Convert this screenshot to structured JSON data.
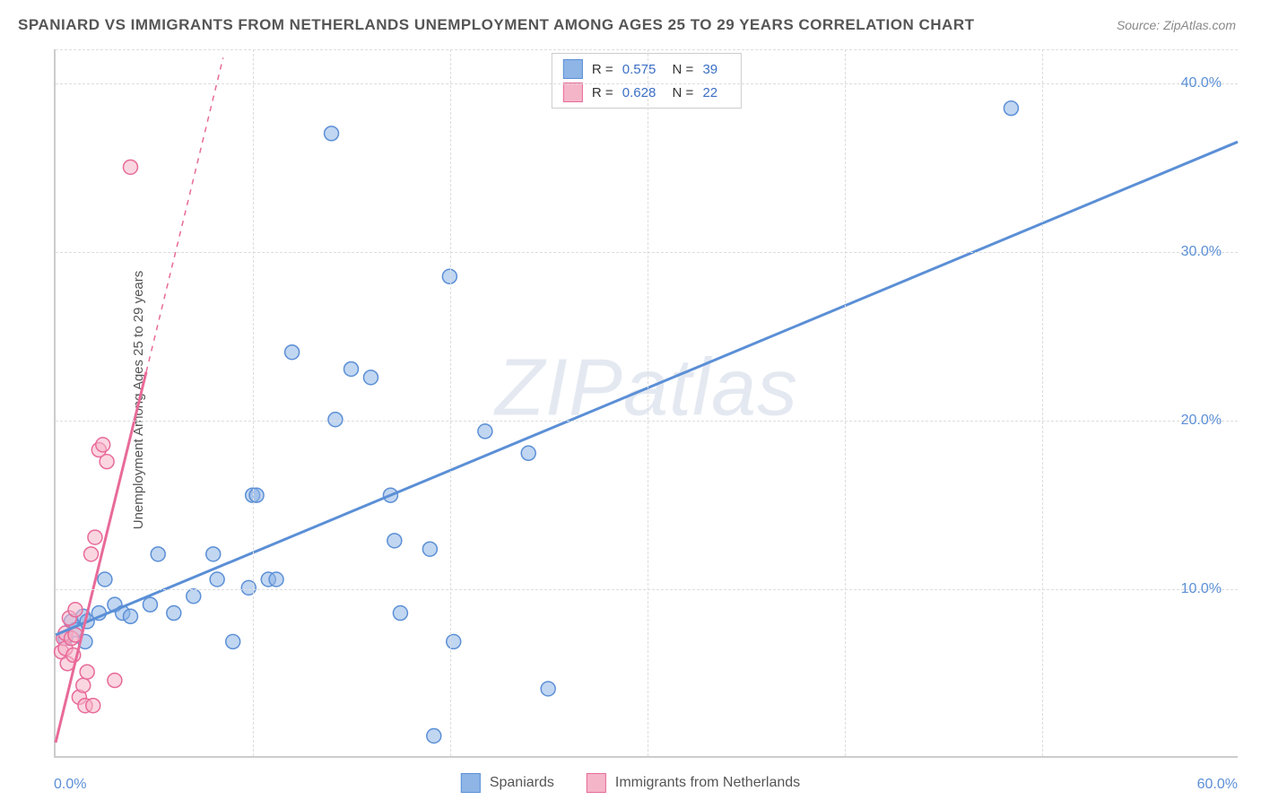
{
  "title": "SPANIARD VS IMMIGRANTS FROM NETHERLANDS UNEMPLOYMENT AMONG AGES 25 TO 29 YEARS CORRELATION CHART",
  "source": "Source: ZipAtlas.com",
  "ylabel": "Unemployment Among Ages 25 to 29 years",
  "watermark": "ZIPatlas",
  "chart": {
    "type": "scatter",
    "xlim": [
      0,
      60
    ],
    "ylim": [
      0,
      42
    ],
    "yticks": [
      10.0,
      20.0,
      30.0,
      40.0
    ],
    "xticks_shown": [
      0.0,
      60.0
    ],
    "gridlines_v": [
      10,
      20,
      30,
      40,
      50
    ],
    "background_color": "#ffffff",
    "grid_color": "#dddddd",
    "axis_color": "#cccccc",
    "tick_label_color": "#5b8fd6",
    "title_fontsize": 17,
    "label_fontsize": 15,
    "tick_fontsize": 16,
    "marker_radius": 8,
    "line_width": 3
  },
  "series": [
    {
      "name": "Spaniards",
      "color_fill": "#8eb5e6",
      "color_stroke": "#5b8fd6",
      "regression": {
        "x1": 0,
        "y1": 7.2,
        "x2": 60,
        "y2": 36.5,
        "solid_cutoff_x": 60
      },
      "R": "0.575",
      "N": "39",
      "points": [
        [
          0.5,
          7.0
        ],
        [
          0.8,
          8.0
        ],
        [
          1.0,
          7.5
        ],
        [
          1.4,
          8.3
        ],
        [
          1.5,
          6.8
        ],
        [
          1.6,
          8.0
        ],
        [
          2.2,
          8.5
        ],
        [
          2.5,
          10.5
        ],
        [
          3.0,
          9.0
        ],
        [
          3.4,
          8.5
        ],
        [
          3.8,
          8.3
        ],
        [
          4.8,
          9.0
        ],
        [
          5.2,
          12.0
        ],
        [
          6.0,
          8.5
        ],
        [
          7.0,
          9.5
        ],
        [
          8.0,
          12.0
        ],
        [
          8.2,
          10.5
        ],
        [
          9.0,
          6.8
        ],
        [
          9.8,
          10.0
        ],
        [
          10.0,
          15.5
        ],
        [
          10.2,
          15.5
        ],
        [
          10.8,
          10.5
        ],
        [
          11.2,
          10.5
        ],
        [
          12.0,
          24.0
        ],
        [
          14.0,
          37.0
        ],
        [
          14.2,
          20.0
        ],
        [
          15.0,
          23.0
        ],
        [
          16.0,
          22.5
        ],
        [
          17.0,
          15.5
        ],
        [
          17.2,
          12.8
        ],
        [
          17.5,
          8.5
        ],
        [
          19.0,
          12.3
        ],
        [
          19.2,
          1.2
        ],
        [
          20.0,
          28.5
        ],
        [
          20.2,
          6.8
        ],
        [
          21.8,
          19.3
        ],
        [
          24.0,
          18.0
        ],
        [
          25.0,
          4.0
        ],
        [
          48.5,
          38.5
        ]
      ]
    },
    {
      "name": "Immigrants from Netherlands",
      "color_fill": "#f5b5c8",
      "color_stroke": "#e86a99",
      "regression": {
        "x1": 0,
        "y1": 0.8,
        "x2": 8.5,
        "y2": 41.5,
        "solid_cutoff_x": 4.6
      },
      "R": "0.628",
      "N": "22",
      "points": [
        [
          0.3,
          6.2
        ],
        [
          0.4,
          7.0
        ],
        [
          0.5,
          7.3
        ],
        [
          0.5,
          6.4
        ],
        [
          0.6,
          5.5
        ],
        [
          0.7,
          8.2
        ],
        [
          0.8,
          7.0
        ],
        [
          0.9,
          6.0
        ],
        [
          1.0,
          8.7
        ],
        [
          1.0,
          7.2
        ],
        [
          1.2,
          3.5
        ],
        [
          1.4,
          4.2
        ],
        [
          1.5,
          3.0
        ],
        [
          1.6,
          5.0
        ],
        [
          1.8,
          12.0
        ],
        [
          1.9,
          3.0
        ],
        [
          2.0,
          13.0
        ],
        [
          2.2,
          18.2
        ],
        [
          2.4,
          18.5
        ],
        [
          2.6,
          17.5
        ],
        [
          3.0,
          4.5
        ],
        [
          3.8,
          35.0
        ]
      ]
    }
  ],
  "legend_top": [
    {
      "swatch_fill": "#8eb5e6",
      "swatch_stroke": "#5b8fd6",
      "r_label": "R =",
      "r_value": "0.575",
      "n_label": "N =",
      "n_value": "39"
    },
    {
      "swatch_fill": "#f5b5c8",
      "swatch_stroke": "#e86a99",
      "r_label": "R =",
      "r_value": "0.628",
      "n_label": "N =",
      "n_value": "22"
    }
  ],
  "legend_bottom": [
    {
      "swatch_fill": "#8eb5e6",
      "swatch_stroke": "#5b8fd6",
      "label": "Spaniards"
    },
    {
      "swatch_fill": "#f5b5c8",
      "swatch_stroke": "#e86a99",
      "label": "Immigrants from Netherlands"
    }
  ]
}
